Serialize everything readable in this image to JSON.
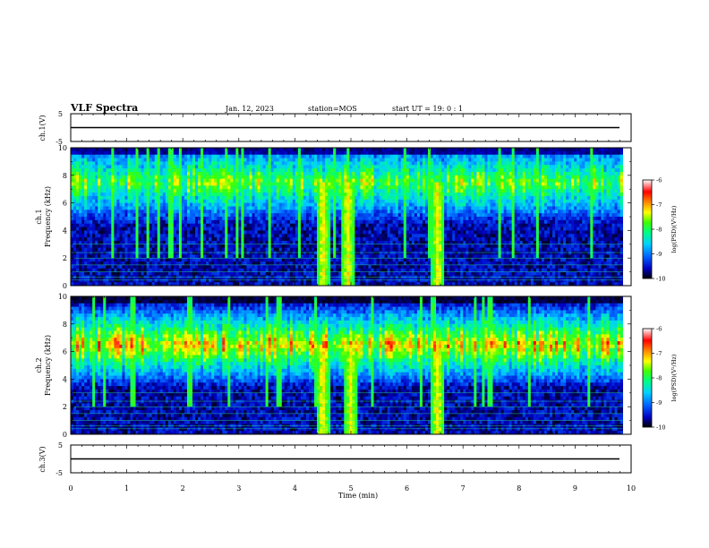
{
  "header": {
    "title": "VLF Spectra",
    "date": "Jan. 12, 2023",
    "station": "station=MOS",
    "start": "start UT =  19: 0  : 1"
  },
  "chart_data": [
    {
      "type": "line",
      "panel": "ch1_waveform",
      "ylabel": "ch.1(V)",
      "y_ticks": [
        "5",
        "-5"
      ],
      "ylim": [
        -5,
        5
      ],
      "series": [
        {
          "x": [
            0,
            9.85
          ],
          "values": [
            0,
            0
          ]
        }
      ]
    },
    {
      "type": "heatmap",
      "panel": "ch1_spectrogram",
      "ylabel": [
        "ch.1",
        "Frequency (kHz)"
      ],
      "y_ticks": [
        "0",
        "2",
        "4",
        "6",
        "8",
        "10"
      ],
      "ylim": [
        0,
        10
      ],
      "xlim": [
        0,
        9.85
      ],
      "colorbar": {
        "label": "log(PSD)(V²/Hz)",
        "ticks": [
          "-6",
          "-7",
          "-8",
          "-9",
          "-10"
        ],
        "range": [
          -10,
          -6
        ]
      },
      "noise_band_khz": [
        5,
        10
      ],
      "noise_peak_level": -7.6,
      "strong_bursts_min": [
        4.5,
        4.95,
        6.55
      ]
    },
    {
      "type": "heatmap",
      "panel": "ch2_spectrogram",
      "ylabel": [
        "ch.2",
        "Frequency (kHz)"
      ],
      "y_ticks": [
        "0",
        "2",
        "4",
        "6",
        "8",
        "10"
      ],
      "ylim": [
        0,
        10
      ],
      "xlim": [
        0,
        9.85
      ],
      "colorbar": {
        "label": "log(PSD)(V²/Hz)",
        "ticks": [
          "-6",
          "-7",
          "-8",
          "-9",
          "-10"
        ],
        "range": [
          -10,
          -6
        ]
      },
      "noise_band_khz": [
        4,
        9
      ],
      "noise_peak_level": -6.9,
      "strong_bursts_min": [
        4.5,
        5.0,
        6.55
      ]
    },
    {
      "type": "line",
      "panel": "ch3_waveform",
      "ylabel": "ch.3(V)",
      "y_ticks": [
        "5",
        "-5"
      ],
      "ylim": [
        -5,
        5
      ],
      "series": [
        {
          "x": [
            0,
            9.85
          ],
          "values": [
            0,
            0
          ]
        }
      ]
    }
  ],
  "xaxis": {
    "label": "Time (min)",
    "ticks": [
      "0",
      "1",
      "2",
      "3",
      "4",
      "5",
      "6",
      "7",
      "8",
      "9",
      "10"
    ],
    "range": [
      0,
      10
    ]
  }
}
